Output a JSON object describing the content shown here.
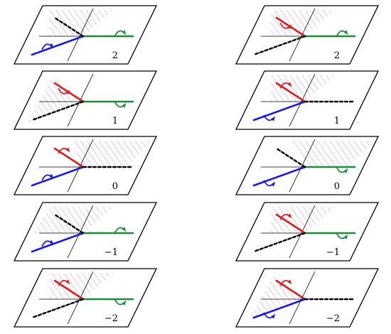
{
  "colors": {
    "red": "#d42020",
    "green": "#1e8c3a",
    "blue": "#1a1ae0",
    "hatch": "#c9a0c9",
    "frame": "#000000",
    "axis": "#000000",
    "dashed": "#000000"
  },
  "columns": [
    {
      "panels": [
        {
          "label": "2",
          "shade": "upper-left",
          "rays": {
            "red": null,
            "green": "right",
            "blue": "lower-left",
            "dashed": "upper-left"
          },
          "arrows": {
            "green": "up",
            "blue": "up"
          }
        },
        {
          "label": "1",
          "shade": "left-wedge",
          "rays": {
            "red": "upper-left",
            "green": "right",
            "blue": null,
            "dashed": "lower-left"
          },
          "arrows": {
            "red": "down",
            "green": "down"
          }
        },
        {
          "label": "0",
          "shade": "right-half",
          "rays": {
            "red": "upper-left",
            "green": null,
            "blue": "lower-left",
            "dashed": "right"
          },
          "arrows": {
            "red": "up",
            "blue": "up"
          }
        },
        {
          "label": "−1",
          "shade": "upper-left-full",
          "rays": {
            "red": null,
            "green": "right",
            "blue": "lower-left",
            "dashed": "upper-left"
          },
          "arrows": {
            "green": "up",
            "blue": "up"
          }
        },
        {
          "label": "−2",
          "shade": "upper-left",
          "rays": {
            "red": "upper-left",
            "green": "right",
            "blue": null,
            "dashed": "lower-left"
          },
          "arrows": {
            "red": "up",
            "green": "down"
          }
        }
      ]
    },
    {
      "panels": [
        {
          "label": "2",
          "shade": "upper-left",
          "rays": {
            "red": "upper-left",
            "green": "right",
            "blue": null,
            "dashed": "lower-left"
          },
          "arrows": {
            "red": "down",
            "green": "up"
          }
        },
        {
          "label": "1",
          "shade": "upper-left",
          "rays": {
            "red": "upper-left",
            "green": null,
            "blue": "lower-left",
            "dashed": "right"
          },
          "arrows": {
            "red": "up",
            "blue": "down"
          }
        },
        {
          "label": "0",
          "shade": "upper-right",
          "rays": {
            "red": null,
            "green": "right",
            "blue": "lower-left",
            "dashed": "upper-left"
          },
          "arrows": {
            "green": "down",
            "blue": "down"
          }
        },
        {
          "label": "−1",
          "shade": "upper-left",
          "rays": {
            "red": "upper-left",
            "green": "right",
            "blue": null,
            "dashed": "lower-left"
          },
          "arrows": {
            "red": "up",
            "green": "down"
          }
        },
        {
          "label": "−2",
          "shade": "left-wedge",
          "rays": {
            "red": "upper-left",
            "green": null,
            "blue": "lower-left",
            "dashed": "right"
          },
          "arrows": {
            "red": "up",
            "blue": "down"
          }
        }
      ]
    }
  ]
}
